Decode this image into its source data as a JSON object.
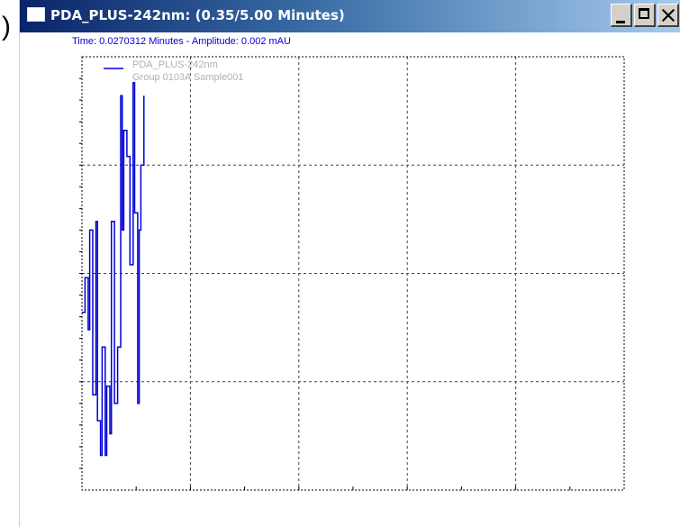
{
  "window": {
    "title": "PDA_PLUS-242nm: (0.35/5.00 Minutes)",
    "icon": "window-icon",
    "controls": {
      "minimize": "minimize-icon",
      "maximize": "maximize-icon",
      "close": "close-icon"
    }
  },
  "readout": {
    "text": "Time:  0.0270312 Minutes - Amplitude:  0.002 mAU"
  },
  "legend": {
    "series_name": "PDA_PLUS-242nm",
    "sample": "Group 0103A Sample001"
  },
  "edge_fragment": ")",
  "chart_data": {
    "type": "line",
    "grid": true,
    "legend_placement": "top-left",
    "series_color": "#0000d8",
    "series": [
      {
        "name": "PDA_PLUS-242nm",
        "x": [
          0.0,
          0.002,
          0.004,
          0.005,
          0.007,
          0.009,
          0.01,
          0.012,
          0.013,
          0.015,
          0.016,
          0.018,
          0.019,
          0.021,
          0.023,
          0.025,
          0.026,
          0.027,
          0.029,
          0.031,
          0.033,
          0.034,
          0.036,
          0.037,
          0.038,
          0.04
        ],
        "y": [
          0.41,
          0.49,
          0.37,
          0.6,
          0.22,
          0.62,
          0.16,
          0.08,
          0.33,
          0.08,
          0.24,
          0.13,
          0.62,
          0.2,
          0.33,
          0.91,
          0.6,
          0.83,
          0.77,
          0.52,
          0.94,
          0.64,
          0.2,
          0.6,
          0.75,
          0.91
        ]
      }
    ]
  }
}
